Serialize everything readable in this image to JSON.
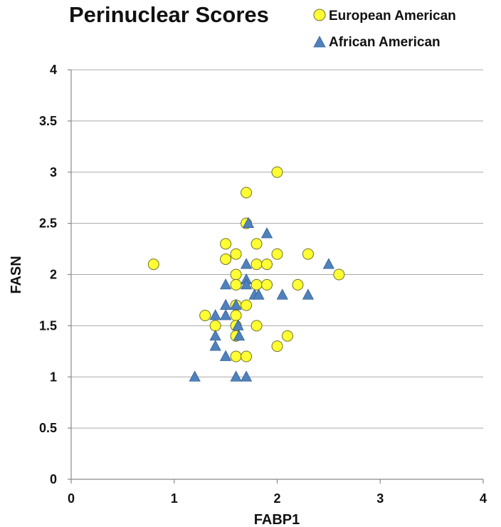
{
  "chart_data": {
    "type": "scatter",
    "title": "Perinuclear Scores",
    "xlabel": "FABP1",
    "ylabel": "FASN",
    "xlim": [
      0,
      4
    ],
    "ylim": [
      0,
      4
    ],
    "x_ticks": [
      "0",
      "1",
      "2",
      "3",
      "4"
    ],
    "y_ticks": [
      "0",
      "0.5",
      "1",
      "1.5",
      "2",
      "2.5",
      "3",
      "3.5",
      "4"
    ],
    "grid": true,
    "legend_position": "top-right",
    "series": [
      {
        "name": "European American",
        "marker": "circle",
        "color": "#ffff33",
        "points": [
          [
            0.8,
            2.1
          ],
          [
            1.3,
            1.6
          ],
          [
            1.4,
            1.5
          ],
          [
            1.5,
            2.3
          ],
          [
            1.5,
            2.15
          ],
          [
            1.6,
            2.2
          ],
          [
            1.6,
            2.0
          ],
          [
            1.6,
            1.9
          ],
          [
            1.6,
            1.7
          ],
          [
            1.6,
            1.6
          ],
          [
            1.6,
            1.5
          ],
          [
            1.6,
            1.4
          ],
          [
            1.6,
            1.2
          ],
          [
            1.7,
            2.8
          ],
          [
            1.7,
            2.5
          ],
          [
            1.7,
            1.7
          ],
          [
            1.7,
            1.2
          ],
          [
            1.8,
            2.3
          ],
          [
            1.8,
            2.1
          ],
          [
            1.8,
            1.9
          ],
          [
            1.8,
            1.5
          ],
          [
            1.9,
            2.1
          ],
          [
            1.9,
            1.9
          ],
          [
            2.0,
            3.0
          ],
          [
            2.0,
            2.2
          ],
          [
            2.0,
            1.3
          ],
          [
            2.1,
            1.4
          ],
          [
            2.2,
            1.9
          ],
          [
            2.3,
            2.2
          ],
          [
            2.6,
            2.0
          ]
        ]
      },
      {
        "name": "African American",
        "marker": "triangle",
        "color": "#4f81bd",
        "points": [
          [
            1.2,
            1.0
          ],
          [
            1.4,
            1.6
          ],
          [
            1.4,
            1.4
          ],
          [
            1.4,
            1.3
          ],
          [
            1.5,
            1.9
          ],
          [
            1.5,
            1.7
          ],
          [
            1.5,
            1.6
          ],
          [
            1.5,
            1.2
          ],
          [
            1.6,
            1.7
          ],
          [
            1.6,
            1.0
          ],
          [
            1.62,
            1.5
          ],
          [
            1.63,
            1.4
          ],
          [
            1.7,
            2.1
          ],
          [
            1.7,
            1.95
          ],
          [
            1.7,
            1.9
          ],
          [
            1.7,
            1.0
          ],
          [
            1.72,
            2.5
          ],
          [
            1.78,
            1.8
          ],
          [
            1.82,
            1.8
          ],
          [
            1.9,
            2.4
          ],
          [
            2.05,
            1.8
          ],
          [
            2.3,
            1.8
          ],
          [
            2.5,
            2.1
          ]
        ]
      }
    ]
  }
}
